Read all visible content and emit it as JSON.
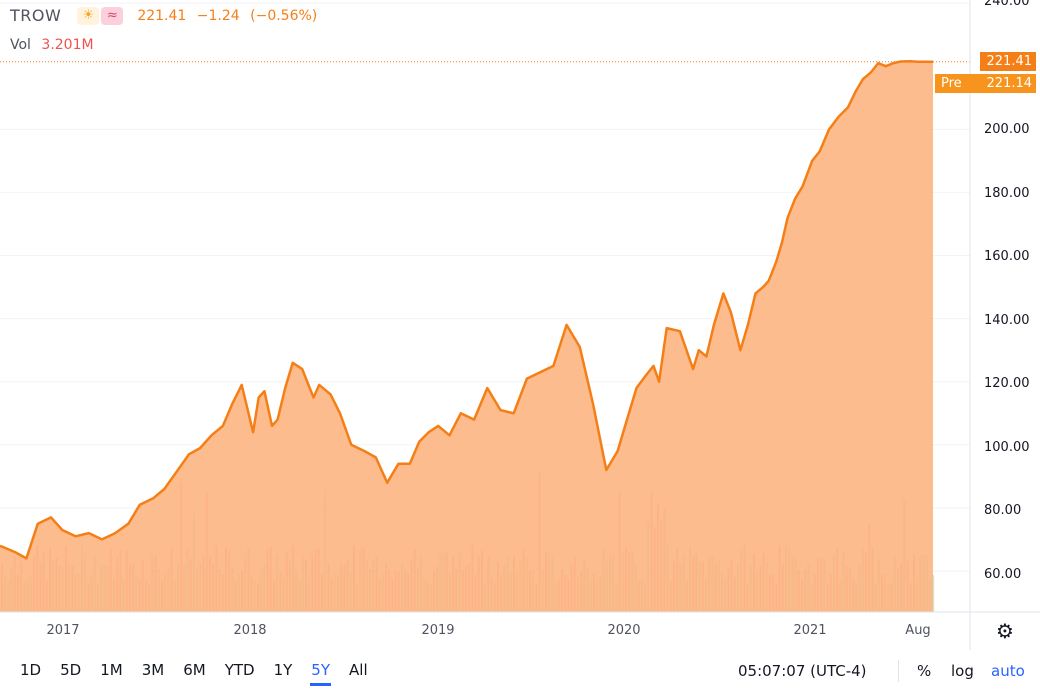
{
  "legend": {
    "symbol": "TROW",
    "sun_icon": "☀",
    "wave_icon": "≈",
    "last": "221.41",
    "change": "−1.24",
    "change_pct": "(−0.56%)"
  },
  "volume": {
    "label": "Vol",
    "value": "3.201M"
  },
  "price_tag": "221.41",
  "pre_tag": {
    "label": "Pre",
    "value": "221.14"
  },
  "y_ticks": [
    "240.00",
    "200.00",
    "180.00",
    "160.00",
    "140.00",
    "120.00",
    "100.00",
    "80.00",
    "60.00"
  ],
  "x_ticks": [
    "2017",
    "2018",
    "2019",
    "2020",
    "2021",
    "Aug"
  ],
  "ranges": [
    "1D",
    "5D",
    "1M",
    "3M",
    "6M",
    "YTD",
    "1Y",
    "5Y",
    "All"
  ],
  "active_range": "5Y",
  "clock": "05:07:07 (UTC-4)",
  "options": {
    "percent": "%",
    "log": "log",
    "auto": "auto"
  },
  "settings_icon": "gear-icon",
  "colors": {
    "line": "#f57f17",
    "area": "#fdb07a",
    "vol_up": "#a5d6a7",
    "vol_down": "#ef9a9a"
  },
  "chart_data": {
    "type": "area",
    "title": "TROW",
    "ylim": [
      47,
      241
    ],
    "grid": true,
    "x": [
      2016.7,
      2016.78,
      2016.84,
      2016.9,
      2016.97,
      2017.03,
      2017.1,
      2017.17,
      2017.24,
      2017.31,
      2017.38,
      2017.44,
      2017.51,
      2017.57,
      2017.63,
      2017.7,
      2017.76,
      2017.82,
      2017.88,
      2017.93,
      2017.98,
      2018.04,
      2018.07,
      2018.1,
      2018.14,
      2018.17,
      2018.21,
      2018.25,
      2018.3,
      2018.36,
      2018.39,
      2018.45,
      2018.5,
      2018.56,
      2018.63,
      2018.69,
      2018.75,
      2018.81,
      2018.87,
      2018.92,
      2018.97,
      2019.02,
      2019.08,
      2019.14,
      2019.21,
      2019.28,
      2019.35,
      2019.42,
      2019.49,
      2019.56,
      2019.63,
      2019.7,
      2019.77,
      2019.84,
      2019.91,
      2019.97,
      2020.02,
      2020.07,
      2020.12,
      2020.16,
      2020.19,
      2020.23,
      2020.3,
      2020.37,
      2020.4,
      2020.44,
      2020.48,
      2020.53,
      2020.57,
      2020.62,
      2020.66,
      2020.7,
      2020.74,
      2020.77,
      2020.81,
      2020.84,
      2020.87,
      2020.91,
      2020.95,
      2021.0,
      2021.04,
      2021.09,
      2021.14,
      2021.19,
      2021.23,
      2021.27,
      2021.31,
      2021.35,
      2021.39,
      2021.43,
      2021.47,
      2021.52,
      2021.56,
      2021.6,
      2021.64
    ],
    "values": [
      68,
      66,
      64,
      75,
      77,
      73,
      71,
      72,
      70,
      72,
      75,
      81,
      83,
      86,
      91,
      97,
      99,
      103,
      106,
      113,
      119,
      104,
      115,
      117,
      106,
      108,
      118,
      126,
      124,
      115,
      119,
      116,
      110,
      100,
      98,
      96,
      88,
      94,
      94,
      101,
      104,
      106,
      103,
      110,
      108,
      118,
      111,
      110,
      121,
      123,
      125,
      138,
      131,
      113,
      92,
      98,
      108,
      118,
      122,
      125,
      120,
      137,
      136,
      124,
      130,
      128,
      138,
      148,
      142,
      130,
      138,
      148,
      150,
      152,
      158,
      164,
      172,
      178,
      182,
      190,
      193,
      200,
      204,
      207,
      212,
      216,
      218,
      221,
      220,
      221,
      221.5,
      221.6,
      221.41,
      221.41,
      221.41
    ],
    "volume": {
      "unit": "M shares",
      "last": 3.201,
      "note": "volume histogram; values in millions of shares (no labelled volume axis)"
    },
    "x_ticks": [
      "2017",
      "2018",
      "2019",
      "2020",
      "2021",
      "Aug"
    ],
    "y_ticks": [
      60,
      80,
      100,
      120,
      140,
      160,
      180,
      200,
      240
    ],
    "last_price": 221.41,
    "pre_market": 221.14
  }
}
